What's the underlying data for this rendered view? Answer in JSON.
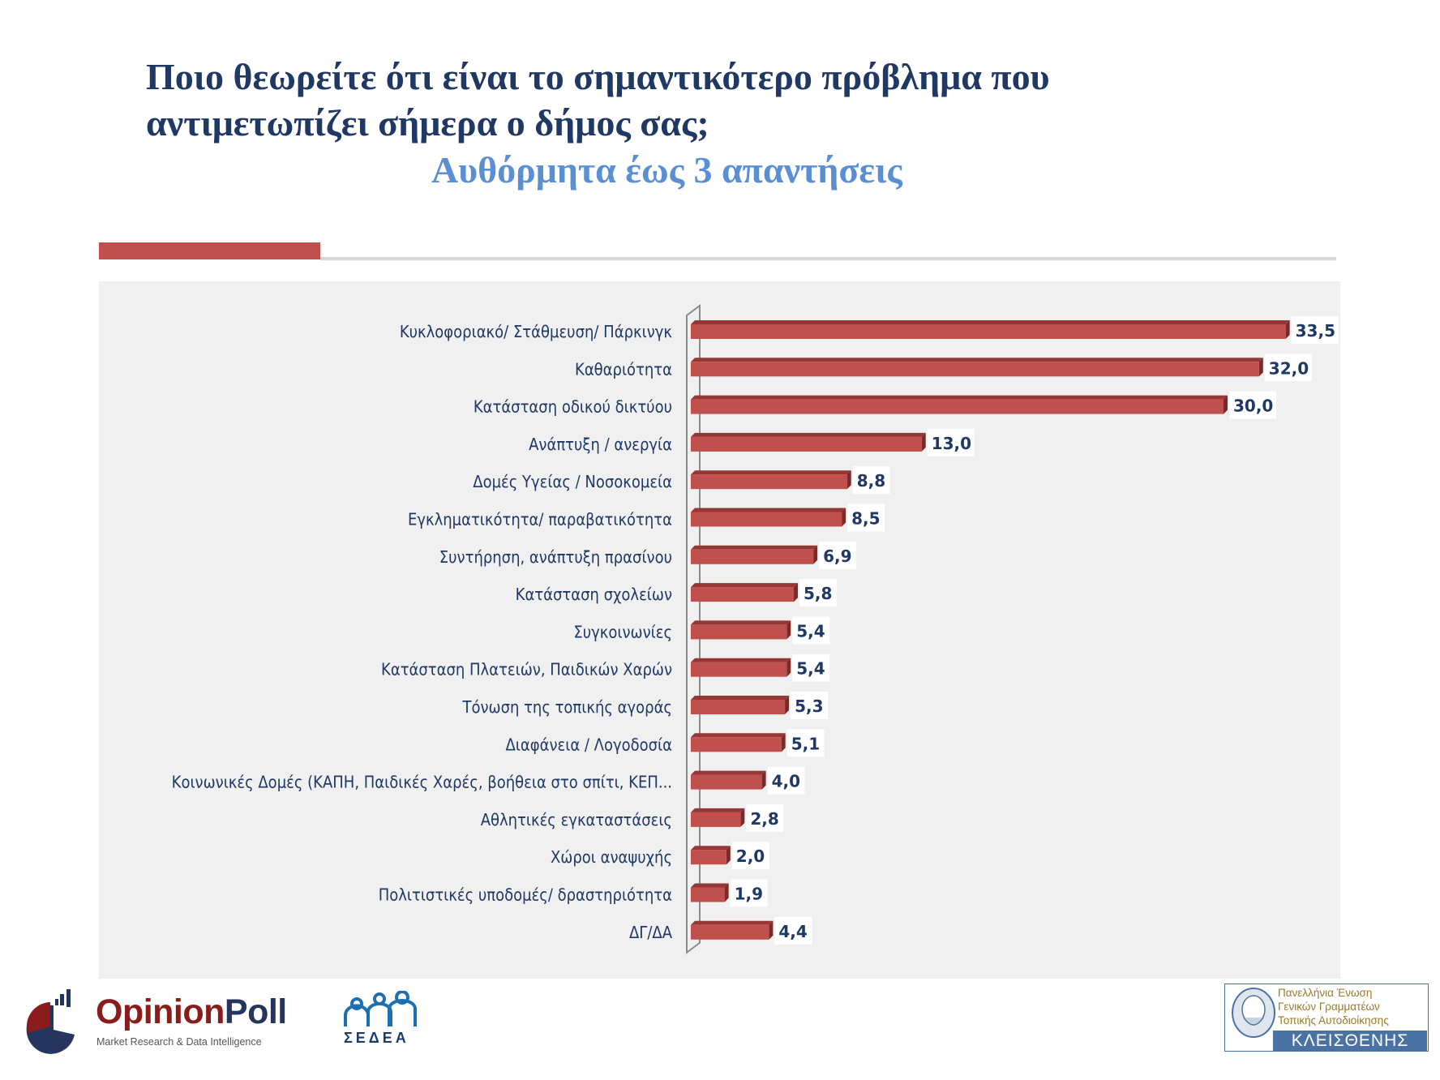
{
  "header": {
    "title_line1": "Ποιο θεωρείτε ότι είναι το σημαντικότερο πρόβλημα που",
    "title_line2": "αντιμετωπίζει σήμερα ο δήμος σας;",
    "subtitle": "Αυθόρμητα έως 3 απαντήσεις"
  },
  "colors": {
    "bar": "#c0504d",
    "bar_top": "#953735",
    "accent": "#c0504d",
    "title": "#1f3864",
    "subtitle": "#5b8fd4",
    "panel": "#f0f0f0"
  },
  "chart_data": {
    "type": "bar",
    "orientation": "horizontal",
    "style": "3d-clustered-bar",
    "title": "Ποιο θεωρείτε ότι είναι το σημαντικότερο πρόβλημα που αντιμετωπίζει σήμερα ο δήμος σας;",
    "subtitle": "Αυθόρμητα έως 3 απαντήσεις",
    "xlabel": "",
    "ylabel": "",
    "xlim": [
      0,
      35
    ],
    "grid": false,
    "legend": "none",
    "value_format": "comma-decimal, 1 digit",
    "categories": [
      "Κυκλοφοριακό/ Στάθμευση/ Πάρκινγκ",
      "Καθαριότητα",
      "Κατάσταση οδικού δικτύου",
      "Ανάπτυξη / ανεργία",
      "Δομές Υγείας / Νοσοκομεία",
      "Εγκληματικότητα/ παραβατικότητα",
      "Συντήρηση, ανάπτυξη πρασίνου",
      "Κατάσταση σχολείων",
      "Συγκοινωνίες",
      "Κατάσταση Πλατειών, Παιδικών Χαρών",
      "Τόνωση της τοπικής αγοράς",
      "Διαφάνεια / Λογοδοσία",
      "Κοινωνικές Δομές (ΚΑΠΗ, Παιδικές Χαρές, βοήθεια στο σπίτι, ΚΕΠ...",
      "Αθλητικές εγκαταστάσεις",
      "Χώροι αναψυχής",
      "Πολιτιστικές υποδομές/ δραστηριότητα",
      "ΔΓ/ΔΑ"
    ],
    "values": [
      33.5,
      32.0,
      30.0,
      13.0,
      8.8,
      8.5,
      6.9,
      5.8,
      5.4,
      5.4,
      5.3,
      5.1,
      4.0,
      2.8,
      2.0,
      1.9,
      4.4
    ],
    "value_labels": [
      "33,5",
      "32,0",
      "30,0",
      "13,0",
      "8,8",
      "8,5",
      "6,9",
      "5,8",
      "5,4",
      "5,4",
      "5,3",
      "5,1",
      "4,0",
      "2,8",
      "2,0",
      "1,9",
      "4,4"
    ]
  },
  "footer": {
    "opinionpoll": {
      "name_part1": "Opinion",
      "name_part2": "Poll",
      "tagline": "Market Research & Data Intelligence"
    },
    "sedea": {
      "name": "ΣΕΔΕΑ"
    },
    "kleisthenis": {
      "line1": "Πανελλήνια Ένωση",
      "line2": "Γενικών Γραμματέων",
      "line3": "Τοπικής Αυτοδιοίκησης",
      "name": "ΚΛΕΙΣΘΕΝΗΣ"
    }
  }
}
